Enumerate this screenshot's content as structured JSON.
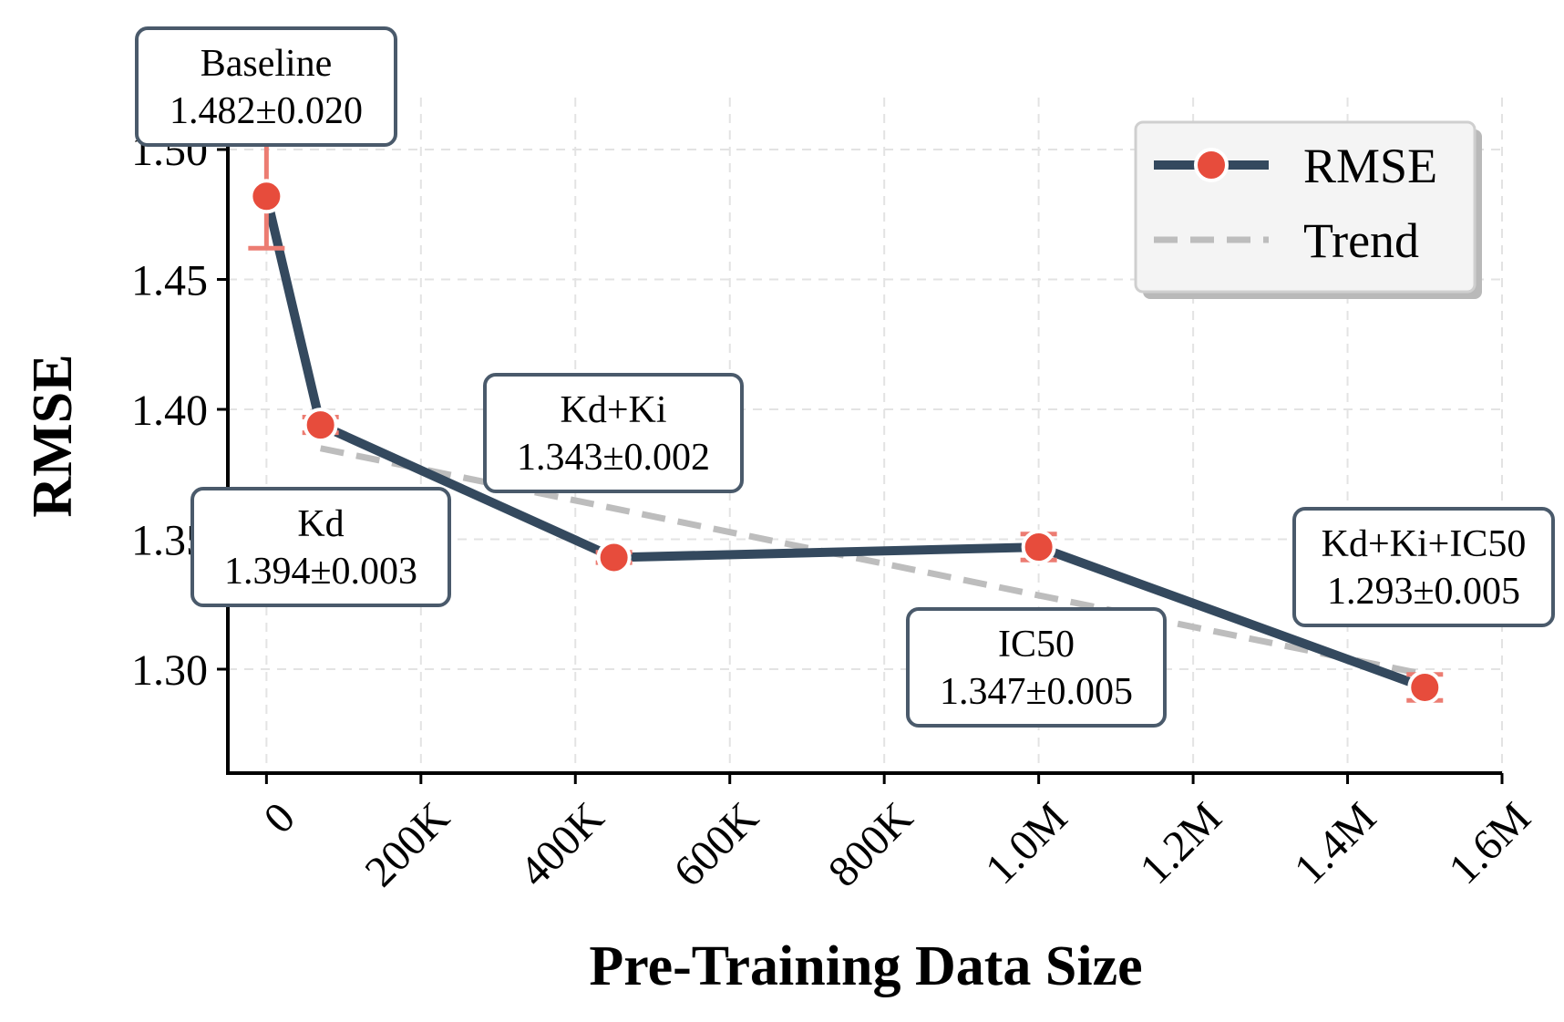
{
  "colors": {
    "line": "#34495e",
    "marker": "#e74c3c",
    "errorbar": "#ec7c72",
    "trend": "#bdbdbd",
    "box_edge": "#4a5a6b",
    "grid": "#e3e3e3",
    "axis": "#000000"
  },
  "chart_data": {
    "type": "line",
    "title": "",
    "xlabel": "Pre-Training Data Size",
    "ylabel": "RMSE",
    "xlim": [
      -50000,
      1600000
    ],
    "ylim": [
      1.26,
      1.52
    ],
    "grid": true,
    "legend_position": "top-right",
    "x_ticks": [
      0,
      200000,
      400000,
      600000,
      800000,
      1000000,
      1200000,
      1400000,
      1600000
    ],
    "x_tick_labels": [
      "0",
      "200K",
      "400K",
      "600K",
      "800K",
      "1.0M",
      "1.2M",
      "1.4M",
      "1.6M"
    ],
    "y_ticks": [
      1.3,
      1.35,
      1.4,
      1.45,
      1.5
    ],
    "y_tick_labels": [
      "1.30",
      "1.35",
      "1.40",
      "1.45",
      "1.50"
    ],
    "legend": [
      {
        "name": "RMSE",
        "style": "line-marker"
      },
      {
        "name": "Trend",
        "style": "dashed"
      }
    ],
    "series": [
      {
        "name": "RMSE",
        "points": [
          {
            "x": 0,
            "y": 1.482,
            "err": 0.02,
            "label": "Baseline",
            "value_text": "1.482±0.020"
          },
          {
            "x": 70000,
            "y": 1.394,
            "err": 0.003,
            "label": "Kd",
            "value_text": "1.394±0.003"
          },
          {
            "x": 450000,
            "y": 1.343,
            "err": 0.002,
            "label": "Kd+Ki",
            "value_text": "1.343±0.002"
          },
          {
            "x": 1000000,
            "y": 1.347,
            "err": 0.005,
            "label": "IC50",
            "value_text": "1.347±0.005"
          },
          {
            "x": 1500000,
            "y": 1.293,
            "err": 0.005,
            "label": "Kd+Ki+IC50",
            "value_text": "1.293±0.005"
          }
        ]
      }
    ],
    "trend": {
      "name": "Trend",
      "x": [
        70000,
        1500000
      ],
      "y": [
        1.385,
        1.298
      ]
    }
  }
}
